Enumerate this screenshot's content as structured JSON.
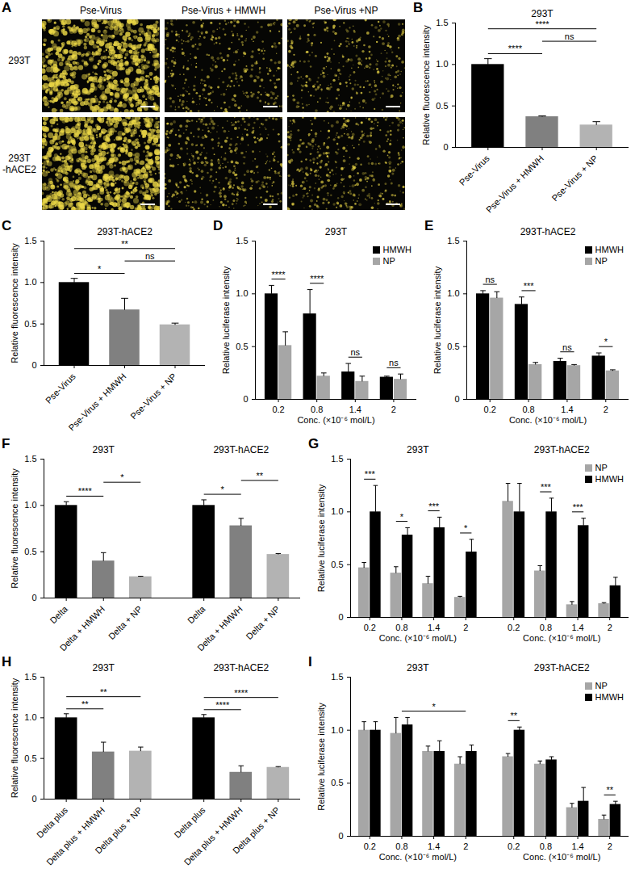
{
  "chart_data": [
    {
      "panel": "A",
      "type": "image_grid",
      "columns": [
        "Pse-Virus",
        "Pse-Virus + HMWH",
        "Pse-Virus +NP"
      ],
      "rows": [
        "293T",
        "293T\n-hACE2"
      ]
    },
    {
      "panel": "B",
      "type": "bar",
      "title": "293T",
      "ylabel": "Relative fluorescence intensity",
      "categories": [
        "Pse-Virus",
        "Pse-Virus + HMWH",
        "Pse-Virus + NP"
      ],
      "values": [
        1.0,
        0.37,
        0.27
      ],
      "errors": [
        0.07,
        0.01,
        0.04
      ],
      "colors": [
        "#000000",
        "#808080",
        "#b3b3b3"
      ],
      "ylim": [
        0,
        1.5
      ],
      "yticks": [
        0,
        0.5,
        {
          "value": 1,
          "label": "1.0"
        },
        1.5
      ],
      "annotations": [
        {
          "text": "****",
          "from": 0,
          "to": 1
        },
        {
          "text": "****",
          "from": 0,
          "to": 2
        },
        {
          "text": "ns",
          "from": 1,
          "to": 2
        }
      ]
    },
    {
      "panel": "C",
      "type": "bar",
      "title": "293T-hACE2",
      "ylabel": "Relative fluorescence intensity",
      "categories": [
        "Pse-Virus",
        "Pse-Virus + HMWH",
        "Pse-Virus + NP"
      ],
      "values": [
        1.0,
        0.67,
        0.49
      ],
      "errors": [
        0.05,
        0.14,
        0.02
      ],
      "colors": [
        "#000000",
        "#808080",
        "#b3b3b3"
      ],
      "ylim": [
        0,
        1.5
      ],
      "yticks": [
        0,
        0.5,
        {
          "value": 1,
          "label": "1.0"
        },
        1.5
      ],
      "annotations": [
        {
          "text": "*",
          "from": 0,
          "to": 1
        },
        {
          "text": "**",
          "from": 0,
          "to": 2
        },
        {
          "text": "ns",
          "from": 1,
          "to": 2
        }
      ]
    },
    {
      "panel": "D",
      "type": "grouped_bar",
      "title": "293T",
      "ylabel": "Relative luciferase intensity",
      "xlabel": "Conc. (×10⁻⁶ mol/L)",
      "categories": [
        0.2,
        0.8,
        1.4,
        2
      ],
      "legend": "top-right",
      "series": [
        {
          "name": "HMWH",
          "color": "#000000",
          "values": [
            1.0,
            0.81,
            0.26,
            0.21
          ],
          "errors": [
            0.08,
            0.23,
            0.08,
            0.01
          ]
        },
        {
          "name": "NP",
          "color": "#a6a6a6",
          "values": [
            0.51,
            0.22,
            0.17,
            0.19
          ],
          "errors": [
            0.13,
            0.03,
            0.05,
            0.05
          ]
        }
      ],
      "ylim": [
        0,
        1.5
      ],
      "yticks": [
        0,
        0.5,
        {
          "value": 1,
          "label": "1.0"
        },
        1.5
      ],
      "annotations": [
        {
          "text": "****",
          "category": 0
        },
        {
          "text": "****",
          "category": 1
        },
        {
          "text": "ns",
          "category": 2
        },
        {
          "text": "ns",
          "category": 3
        }
      ]
    },
    {
      "panel": "E",
      "type": "grouped_bar",
      "title": "293T-hACE2",
      "ylabel": "Relative luciferase intensity",
      "xlabel": "Conc. (×10⁻⁶ mol/L)",
      "categories": [
        0.2,
        0.8,
        1.4,
        2
      ],
      "legend": "top-right",
      "series": [
        {
          "name": "HMWH",
          "color": "#000000",
          "values": [
            1.0,
            0.9,
            0.36,
            0.41
          ],
          "errors": [
            0.03,
            0.07,
            0.03,
            0.03
          ]
        },
        {
          "name": "NP",
          "color": "#a6a6a6",
          "values": [
            0.96,
            0.33,
            0.32,
            0.27
          ],
          "errors": [
            0.06,
            0.02,
            0.01,
            0.01
          ]
        }
      ],
      "ylim": [
        0,
        1.5
      ],
      "yticks": [
        0,
        0.5,
        {
          "value": 1,
          "label": "1.0"
        },
        1.5
      ],
      "annotations": [
        {
          "text": "ns",
          "category": 0
        },
        {
          "text": "***",
          "category": 1
        },
        {
          "text": "ns",
          "category": 2
        },
        {
          "text": "*",
          "category": 3
        }
      ]
    },
    {
      "panel": "F",
      "type": "bar",
      "ylabel": "Relative fluorescence intensity",
      "ylim": [
        0,
        1.5
      ],
      "yticks": [
        0,
        0.5,
        {
          "value": 1,
          "label": "1.0"
        },
        1.5
      ],
      "groups": [
        {
          "title": "293T",
          "categories": [
            "Delta",
            "Delta + HMWH",
            "Delta + NP"
          ],
          "values": [
            1.0,
            0.4,
            0.23
          ],
          "errors": [
            0.04,
            0.09,
            0.005
          ],
          "colors": [
            "#000000",
            "#808080",
            "#b3b3b3"
          ],
          "annotations": [
            {
              "text": "****",
              "from": 0,
              "to": 1
            },
            {
              "text": "*",
              "from": 1,
              "to": 2
            }
          ]
        },
        {
          "title": "293T-hACE2",
          "categories": [
            "Delta",
            "Delta + HMWH",
            "Delta + NP"
          ],
          "values": [
            1.0,
            0.78,
            0.47
          ],
          "errors": [
            0.06,
            0.08,
            0.01
          ],
          "colors": [
            "#000000",
            "#808080",
            "#b3b3b3"
          ],
          "annotations": [
            {
              "text": "*",
              "from": 0,
              "to": 1
            },
            {
              "text": "**",
              "from": 1,
              "to": 2
            }
          ]
        }
      ]
    },
    {
      "panel": "G",
      "type": "grouped_bar",
      "ylabel": "Relative luciferase intensity",
      "legend": "top-right",
      "ylim": [
        0,
        1.5
      ],
      "yticks": [
        0,
        0.5,
        {
          "value": 1,
          "label": "1.0"
        },
        1.5
      ],
      "groups": [
        {
          "title": "293T",
          "xlabel": "Conc. (×10⁻⁶ mol/L)",
          "categories": [
            0.2,
            0.8,
            1.4,
            2
          ],
          "series": [
            {
              "name": "NP",
              "color": "#a6a6a6",
              "values": [
                0.47,
                0.42,
                0.32,
                0.19
              ],
              "errors": [
                0.05,
                0.06,
                0.07,
                0.01
              ]
            },
            {
              "name": "HMWH",
              "color": "#000000",
              "values": [
                1.0,
                0.78,
                0.85,
                0.62
              ],
              "errors": [
                0.25,
                0.07,
                0.1,
                0.12
              ]
            }
          ],
          "annotations": [
            {
              "text": "***",
              "category": 0
            },
            {
              "text": "*",
              "category": 1
            },
            {
              "text": "***",
              "category": 2
            },
            {
              "text": "*",
              "category": 3
            }
          ]
        },
        {
          "title": "293T-hACE2",
          "xlabel": "Conc. (×10⁻⁶ mol/L)",
          "categories": [
            0.2,
            0.8,
            1.4,
            2
          ],
          "series": [
            {
              "name": "NP",
              "color": "#a6a6a6",
              "values": [
                1.1,
                0.44,
                0.12,
                0.13
              ],
              "errors": [
                0.17,
                0.05,
                0.03,
                0.01
              ]
            },
            {
              "name": "HMWH",
              "color": "#000000",
              "values": [
                1.0,
                1.0,
                0.87,
                0.3
              ],
              "errors": [
                0.27,
                0.13,
                0.07,
                0.08
              ]
            }
          ],
          "annotations": [
            {
              "text": "***",
              "category": 1
            },
            {
              "text": "***",
              "category": 2
            }
          ]
        }
      ]
    },
    {
      "panel": "H",
      "type": "bar",
      "ylabel": "Relative fluorescence intensity",
      "ylim": [
        0,
        1.5
      ],
      "yticks": [
        0,
        0.5,
        {
          "value": 1,
          "label": "1.0"
        },
        1.5
      ],
      "groups": [
        {
          "title": "293T",
          "categories": [
            "Delta plus",
            "Delta plus + HMWH",
            "Delta plus + NP"
          ],
          "values": [
            1.0,
            0.58,
            0.59
          ],
          "errors": [
            0.05,
            0.12,
            0.05
          ],
          "colors": [
            "#000000",
            "#808080",
            "#b3b3b3"
          ],
          "annotations": [
            {
              "text": "**",
              "from": 0,
              "to": 1
            },
            {
              "text": "**",
              "from": 0,
              "to": 2
            }
          ]
        },
        {
          "title": "293T-hACE2",
          "categories": [
            "Delta plus",
            "Delta plus + HMWH",
            "Delta plus + NP"
          ],
          "values": [
            1.0,
            0.33,
            0.39
          ],
          "errors": [
            0.04,
            0.08,
            0.01
          ],
          "colors": [
            "#000000",
            "#808080",
            "#b3b3b3"
          ],
          "annotations": [
            {
              "text": "****",
              "from": 0,
              "to": 1
            },
            {
              "text": "****",
              "from": 0,
              "to": 2
            }
          ]
        }
      ]
    },
    {
      "panel": "I",
      "type": "grouped_bar",
      "ylabel": "Relative luciferase intensity",
      "legend": "top-right",
      "ylim": [
        0,
        1.5
      ],
      "yticks": [
        0,
        0.5,
        {
          "value": 1,
          "label": "1.0"
        },
        1.5
      ],
      "groups": [
        {
          "title": "293T",
          "xlabel": "Conc. (×10⁻⁶ mol/L)",
          "categories": [
            0.2,
            0.8,
            1.4,
            2
          ],
          "series": [
            {
              "name": "NP",
              "color": "#a6a6a6",
              "values": [
                1.0,
                0.97,
                0.8,
                0.68
              ],
              "errors": [
                0.08,
                0.15,
                0.05,
                0.07
              ]
            },
            {
              "name": "HMWH",
              "color": "#000000",
              "values": [
                1.0,
                1.05,
                0.8,
                0.8
              ],
              "errors": [
                0.08,
                0.07,
                0.1,
                0.06
              ]
            }
          ],
          "annotations": [
            {
              "text": "*",
              "from": 1,
              "to": 3
            }
          ]
        },
        {
          "title": "293T-hACE2",
          "xlabel": "Conc. (×10⁻⁶ mol/L)",
          "categories": [
            0.2,
            0.8,
            1.4,
            2
          ],
          "series": [
            {
              "name": "NP",
              "color": "#a6a6a6",
              "values": [
                0.75,
                0.68,
                0.27,
                0.16
              ],
              "errors": [
                0.03,
                0.03,
                0.04,
                0.04
              ]
            },
            {
              "name": "HMWH",
              "color": "#000000",
              "values": [
                1.0,
                0.72,
                0.33,
                0.3
              ],
              "errors": [
                0.03,
                0.03,
                0.13,
                0.03
              ]
            }
          ],
          "annotations": [
            {
              "text": "**",
              "category": 0
            },
            {
              "text": "**",
              "category": 3
            }
          ]
        }
      ]
    }
  ]
}
